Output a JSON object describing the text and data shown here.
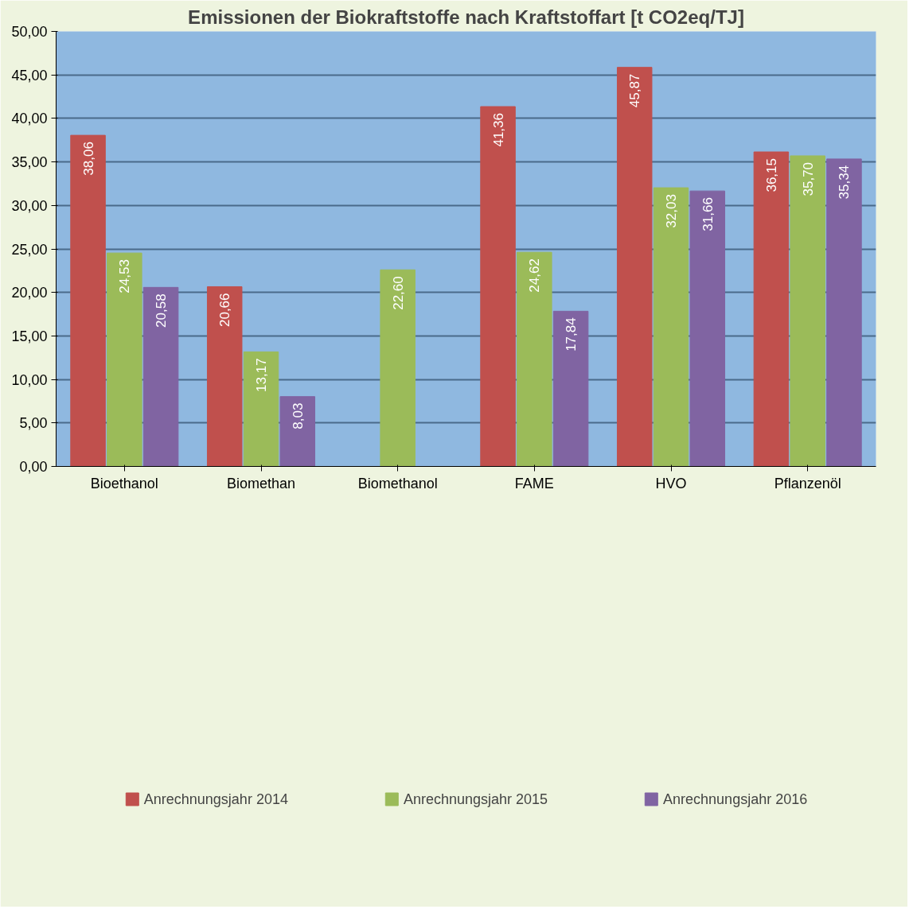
{
  "chart_data": {
    "type": "bar",
    "title": "Emissionen der Biokraftstoffe nach Kraftstoffart [t CO2eq/TJ]",
    "categories": [
      "Bioethanol",
      "Biomethan",
      "Biomethanol",
      "FAME",
      "HVO",
      "Pflanzenöl"
    ],
    "series": [
      {
        "name": "Anrechnungsjahr 2014",
        "color": "#c0504d",
        "values": [
          38.06,
          20.66,
          null,
          41.36,
          45.87,
          36.15
        ],
        "value_labels": [
          "38,06",
          "20,66",
          null,
          "41,36",
          "45,87",
          "36,15"
        ]
      },
      {
        "name": "Anrechnungsjahr 2015",
        "color": "#9bbb59",
        "values": [
          24.53,
          13.17,
          22.6,
          24.62,
          32.03,
          35.7
        ],
        "value_labels": [
          "24,53",
          "13,17",
          "22,60",
          "24,62",
          "32,03",
          "35,70"
        ]
      },
      {
        "name": "Anrechnungsjahr 2016",
        "color": "#8064a2",
        "values": [
          20.58,
          8.03,
          null,
          17.84,
          31.66,
          35.34
        ],
        "value_labels": [
          "20,58",
          "8,03",
          null,
          "17,84",
          "31,66",
          "35,34"
        ]
      }
    ],
    "ylim": [
      0,
      50
    ],
    "yticks": [
      {
        "value": 0,
        "label": "0,00"
      },
      {
        "value": 5,
        "label": "5,00"
      },
      {
        "value": 10,
        "label": "10,00"
      },
      {
        "value": 15,
        "label": "15,00"
      },
      {
        "value": 20,
        "label": "20,00"
      },
      {
        "value": 25,
        "label": "25,00"
      },
      {
        "value": 30,
        "label": "30,00"
      },
      {
        "value": 35,
        "label": "35,00"
      },
      {
        "value": 40,
        "label": "40,00"
      },
      {
        "value": 45,
        "label": "45,00"
      },
      {
        "value": 50,
        "label": "50,00"
      }
    ],
    "grid": "y",
    "legend": "bottom"
  }
}
